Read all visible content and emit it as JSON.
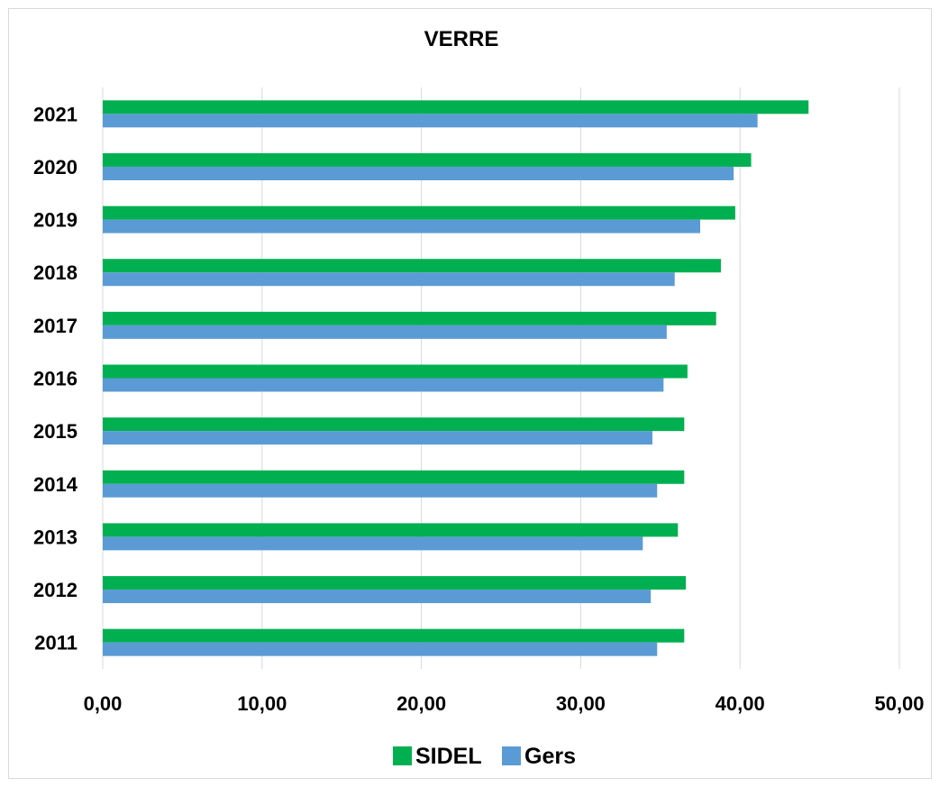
{
  "chart_data": {
    "type": "bar",
    "orientation": "horizontal",
    "title": "VERRE",
    "xlabel": "",
    "ylabel": "",
    "categories": [
      "2011",
      "2012",
      "2013",
      "2014",
      "2015",
      "2016",
      "2017",
      "2018",
      "2019",
      "2020",
      "2021"
    ],
    "series": [
      {
        "name": "SIDEL",
        "color": "#00b050",
        "values": [
          36.5,
          36.6,
          36.1,
          36.5,
          36.5,
          36.7,
          38.5,
          38.8,
          39.7,
          40.7,
          44.3
        ]
      },
      {
        "name": "Gers",
        "color": "#5b9bd5",
        "values": [
          34.8,
          34.4,
          33.9,
          34.8,
          34.5,
          35.2,
          35.4,
          35.9,
          37.5,
          39.6,
          41.1
        ]
      }
    ],
    "xlim": [
      0,
      50
    ],
    "x_ticks": [
      "0,00",
      "10,00",
      "20,00",
      "30,00",
      "40,00",
      "50,00"
    ],
    "grid": "vertical",
    "legend_position": "bottom"
  }
}
